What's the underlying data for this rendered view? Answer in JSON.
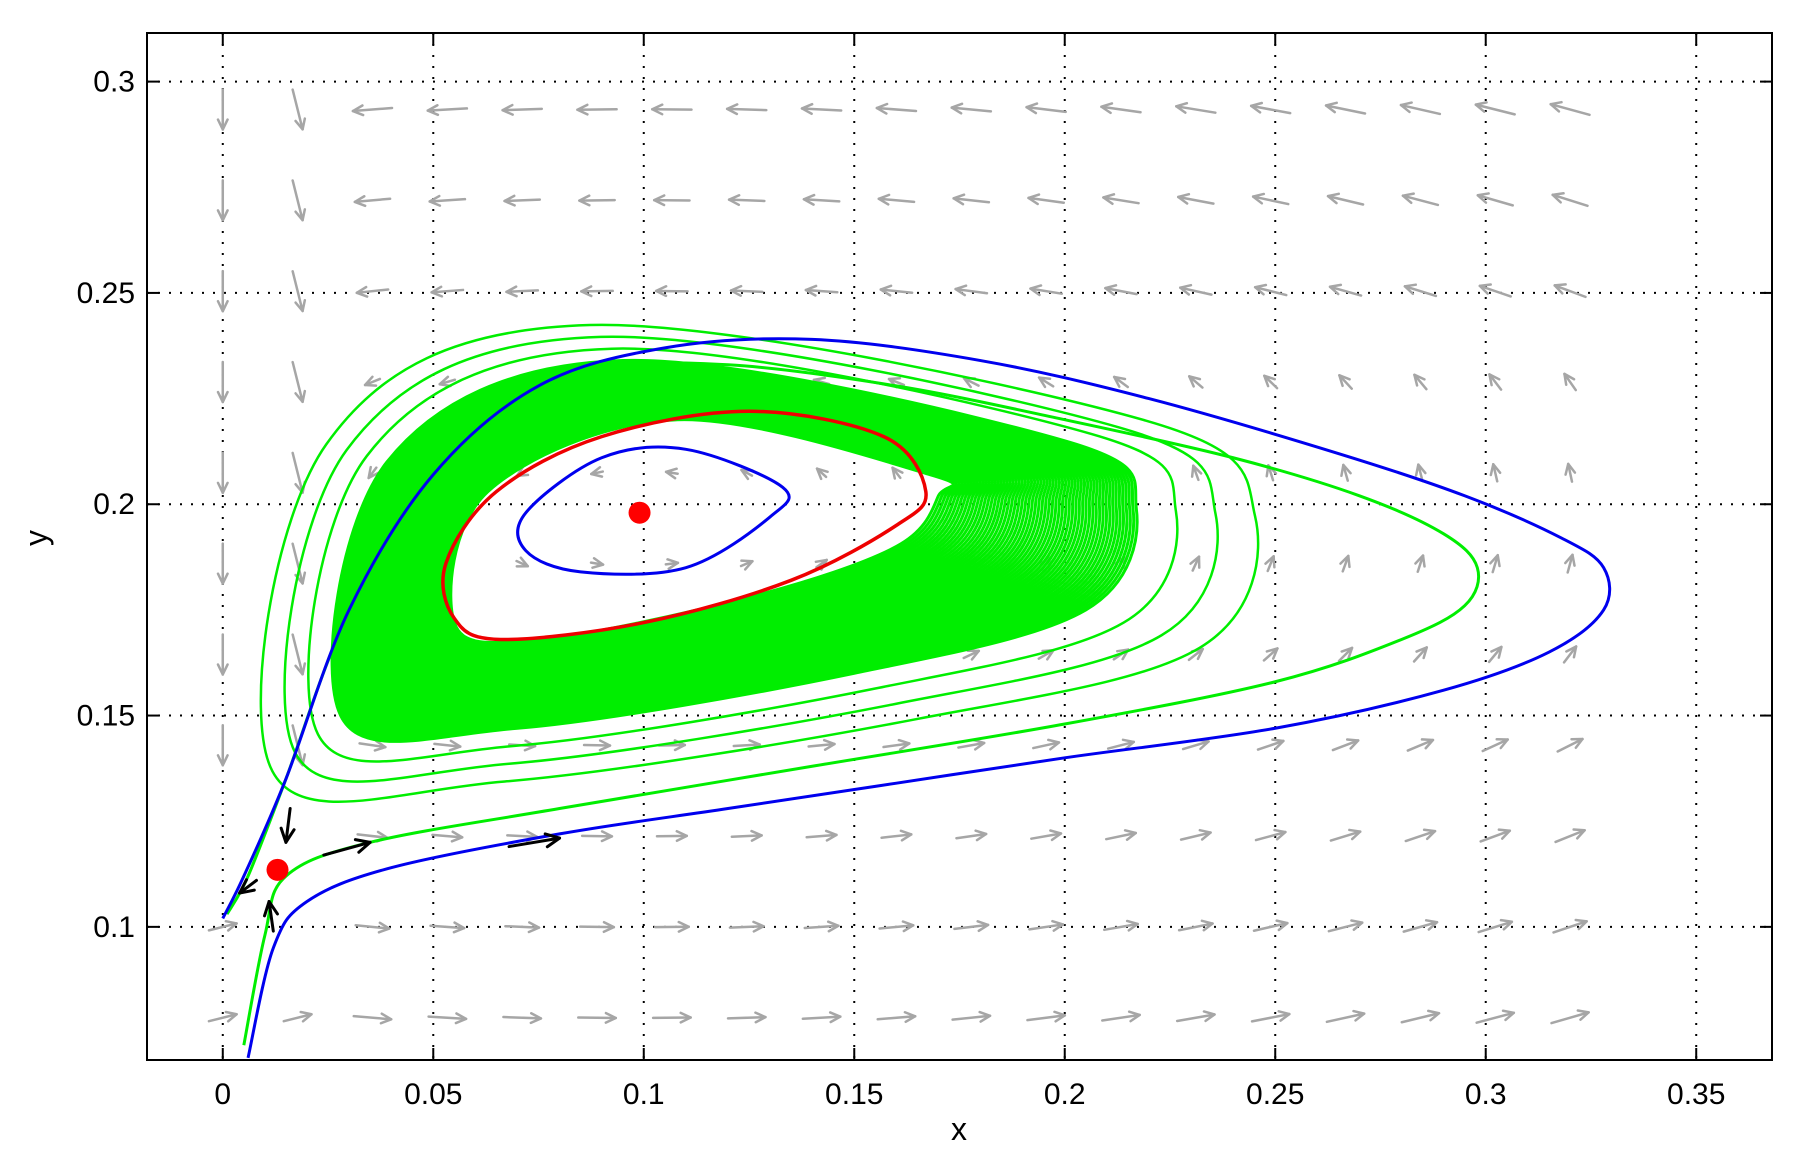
{
  "chart_data": {
    "type": "phase_portrait",
    "xlabel": "x",
    "ylabel": "y",
    "xlim": [
      -0.018,
      0.368
    ],
    "ylim": [
      0.0685,
      0.3115
    ],
    "grid": "dotted",
    "x_ticks": [
      0,
      0.05,
      0.1,
      0.15,
      0.2,
      0.25,
      0.3,
      0.35
    ],
    "y_ticks": [
      0.1,
      0.15,
      0.2,
      0.25,
      0.3
    ],
    "x_tick_labels": [
      "0",
      "0.05",
      "0.1",
      "0.15",
      "0.2",
      "0.25",
      "0.3",
      "0.35"
    ],
    "y_tick_labels": [
      "0.1",
      "0.15",
      "0.2",
      "0.25",
      "0.3"
    ],
    "colors": {
      "vector_field": "#a6a6a6",
      "blue_orbit": "#0000ee",
      "green_orbit": "#00ee00",
      "red_cycle": "#ee0000",
      "equilibrium": "#ff0000",
      "flow_arrow": "#000000",
      "grid": "#000000"
    },
    "equilibria": [
      {
        "type": "center-like",
        "x": 0.099,
        "y": 0.198
      },
      {
        "type": "saddle",
        "x": 0.013,
        "y": 0.1135
      }
    ],
    "vector_field_grid": {
      "x_start": 0,
      "x_step": 0.01778,
      "x_count": 19,
      "y_start": 0.0785,
      "y_step": 0.02149,
      "y_count": 11
    },
    "blue_outer_orbit": [
      [
        0.006,
        0.069
      ],
      [
        0.012,
        0.095
      ],
      [
        0.02,
        0.106
      ],
      [
        0.04,
        0.114
      ],
      [
        0.08,
        0.122
      ],
      [
        0.12,
        0.128
      ],
      [
        0.16,
        0.134
      ],
      [
        0.2,
        0.14
      ],
      [
        0.25,
        0.147
      ],
      [
        0.29,
        0.156
      ],
      [
        0.315,
        0.165
      ],
      [
        0.328,
        0.175
      ],
      [
        0.328,
        0.185
      ],
      [
        0.318,
        0.192
      ],
      [
        0.295,
        0.202
      ],
      [
        0.265,
        0.212
      ],
      [
        0.22,
        0.225
      ],
      [
        0.18,
        0.234
      ],
      [
        0.14,
        0.239
      ],
      [
        0.105,
        0.237
      ],
      [
        0.075,
        0.228
      ],
      [
        0.05,
        0.207
      ],
      [
        0.03,
        0.175
      ],
      [
        0.015,
        0.135
      ],
      [
        0.005,
        0.112
      ],
      [
        0.0,
        0.102
      ]
    ],
    "green_outer_orbit": [
      [
        0.005,
        0.072
      ],
      [
        0.01,
        0.098
      ],
      [
        0.015,
        0.112
      ],
      [
        0.035,
        0.12
      ],
      [
        0.08,
        0.128
      ],
      [
        0.14,
        0.138
      ],
      [
        0.2,
        0.148
      ],
      [
        0.25,
        0.158
      ],
      [
        0.28,
        0.168
      ],
      [
        0.295,
        0.176
      ],
      [
        0.298,
        0.185
      ],
      [
        0.29,
        0.193
      ],
      [
        0.27,
        0.202
      ],
      [
        0.24,
        0.211
      ],
      [
        0.2,
        0.22
      ],
      [
        0.16,
        0.228
      ],
      [
        0.12,
        0.233
      ],
      [
        0.09,
        0.232
      ],
      [
        0.065,
        0.222
      ],
      [
        0.045,
        0.2
      ],
      [
        0.028,
        0.17
      ],
      [
        0.015,
        0.135
      ],
      [
        0.006,
        0.112
      ],
      [
        0.001,
        0.103
      ]
    ],
    "green_spiral": {
      "outer_ring": [
        [
          0.028,
          0.15
        ],
        [
          0.039,
          0.21
        ],
        [
          0.095,
          0.234
        ],
        [
          0.2,
          0.215
        ],
        [
          0.217,
          0.199
        ],
        [
          0.205,
          0.175
        ],
        [
          0.15,
          0.16
        ],
        [
          0.07,
          0.147
        ]
      ],
      "inner_ring": [
        [
          0.055,
          0.172
        ],
        [
          0.063,
          0.203
        ],
        [
          0.108,
          0.22
        ],
        [
          0.168,
          0.207
        ],
        [
          0.17,
          0.202
        ],
        [
          0.16,
          0.19
        ],
        [
          0.125,
          0.178
        ],
        [
          0.075,
          0.168
        ]
      ],
      "ring_count": 60
    },
    "red_limit_cycle": [
      [
        0.066,
        0.168
      ],
      [
        0.1,
        0.172
      ],
      [
        0.135,
        0.182
      ],
      [
        0.16,
        0.195
      ],
      [
        0.167,
        0.203
      ],
      [
        0.157,
        0.216
      ],
      [
        0.125,
        0.222
      ],
      [
        0.09,
        0.216
      ],
      [
        0.065,
        0.203
      ],
      [
        0.053,
        0.186
      ],
      [
        0.055,
        0.173
      ],
      [
        0.066,
        0.168
      ]
    ],
    "blue_inner_orbit": [
      [
        0.085,
        0.184
      ],
      [
        0.11,
        0.185
      ],
      [
        0.13,
        0.197
      ],
      [
        0.133,
        0.204
      ],
      [
        0.11,
        0.213
      ],
      [
        0.09,
        0.211
      ],
      [
        0.072,
        0.198
      ],
      [
        0.072,
        0.189
      ],
      [
        0.085,
        0.184
      ]
    ],
    "black_flow_arrows": [
      {
        "from": [
          0.016,
          0.128
        ],
        "to": [
          0.015,
          0.12
        ]
      },
      {
        "from": [
          0.008,
          0.111
        ],
        "to": [
          0.004,
          0.108
        ]
      },
      {
        "from": [
          0.012,
          0.099
        ],
        "to": [
          0.011,
          0.106
        ]
      },
      {
        "from": [
          0.024,
          0.117
        ],
        "to": [
          0.035,
          0.12
        ]
      },
      {
        "from": [
          0.068,
          0.119
        ],
        "to": [
          0.08,
          0.121
        ]
      }
    ]
  }
}
